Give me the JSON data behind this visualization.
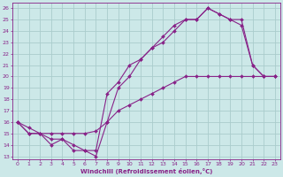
{
  "xlabel": "Windchill (Refroidissement éolien,°C)",
  "bg_color": "#cce8e8",
  "line_color": "#882288",
  "grid_color": "#aacccc",
  "xlim": [
    -0.5,
    23.5
  ],
  "ylim": [
    12.7,
    26.5
  ],
  "xticks": [
    0,
    1,
    2,
    3,
    4,
    5,
    6,
    7,
    8,
    9,
    10,
    11,
    12,
    13,
    14,
    15,
    16,
    17,
    18,
    19,
    20,
    21,
    22,
    23
  ],
  "yticks": [
    13,
    14,
    15,
    16,
    17,
    18,
    19,
    20,
    21,
    22,
    23,
    24,
    25,
    26
  ],
  "line1_x": [
    0,
    1,
    2,
    3,
    4,
    5,
    6,
    7,
    8,
    9,
    10,
    11,
    12,
    13,
    14,
    15,
    16,
    17,
    18,
    19,
    20,
    21,
    22,
    23
  ],
  "line1_y": [
    16,
    15,
    15,
    14,
    14.5,
    13.5,
    13.5,
    13,
    16,
    19,
    20,
    21.5,
    22.5,
    23.5,
    24.5,
    25,
    25,
    26,
    25.5,
    25,
    25,
    21,
    20,
    20
  ],
  "line2_x": [
    0,
    1,
    2,
    3,
    4,
    5,
    6,
    7,
    8,
    9,
    10,
    11,
    12,
    13,
    14,
    15,
    16,
    17,
    18,
    19,
    20,
    21,
    22,
    23
  ],
  "line2_y": [
    16,
    15,
    15,
    14.5,
    14.5,
    14,
    13.5,
    13.5,
    18.5,
    19.5,
    21,
    21.5,
    22.5,
    23,
    24,
    25,
    25,
    26,
    25.5,
    25,
    24.5,
    21,
    20,
    20
  ],
  "line3_x": [
    0,
    1,
    2,
    3,
    4,
    5,
    6,
    7,
    8,
    9,
    10,
    11,
    12,
    13,
    14,
    15,
    16,
    17,
    18,
    19,
    20,
    21,
    22,
    23
  ],
  "line3_y": [
    16,
    15.5,
    15,
    15,
    15,
    15,
    15,
    15.2,
    16,
    17,
    17.5,
    18,
    18.5,
    19,
    19.5,
    20,
    20,
    20,
    20,
    20,
    20,
    20,
    20,
    20
  ]
}
